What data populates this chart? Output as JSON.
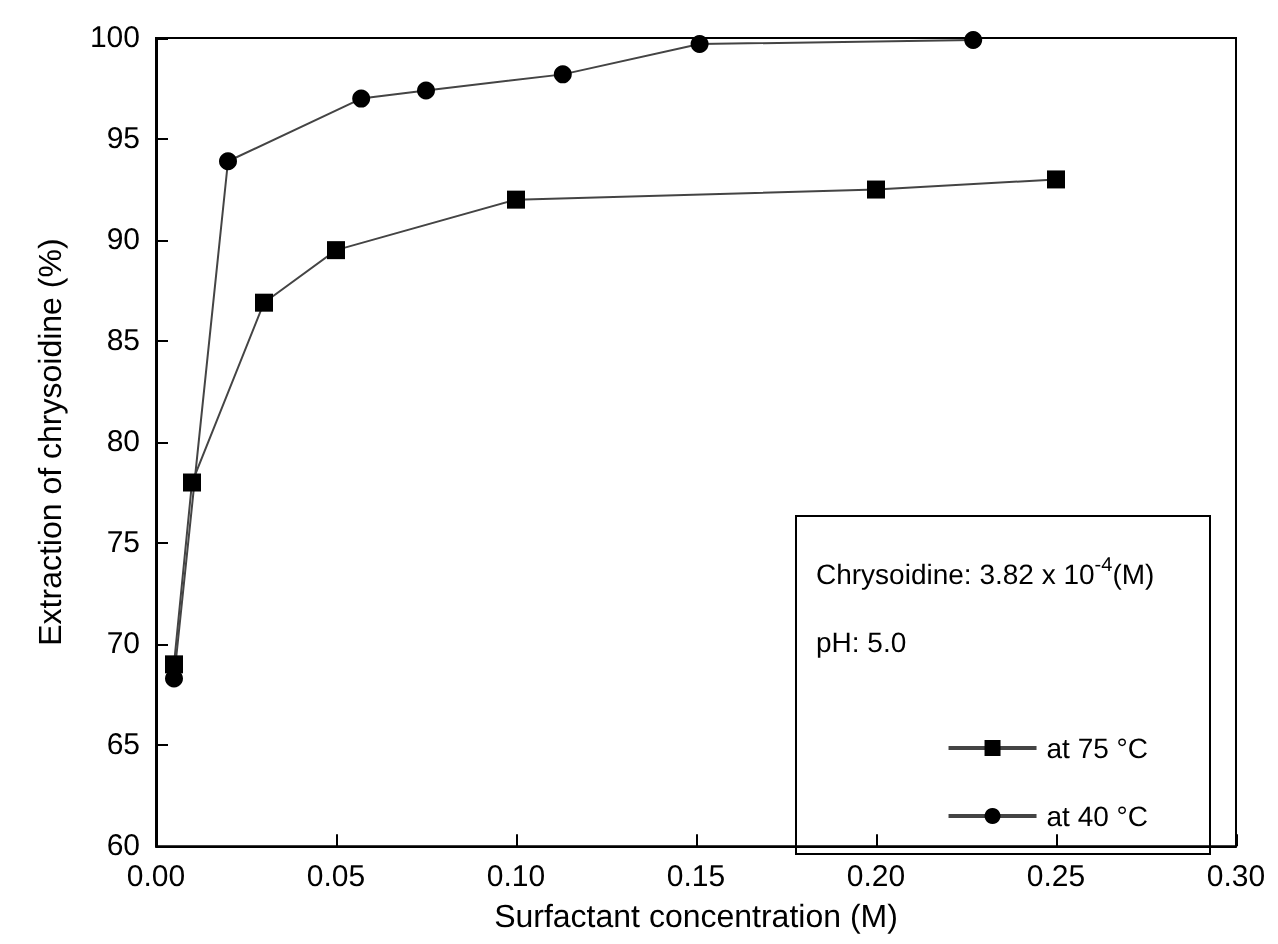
{
  "chart_data": {
    "type": "line",
    "xlabel": "Surfactant concentration (M)",
    "ylabel": "Extraction of chrysoidine (%)",
    "xlim": [
      0,
      0.3
    ],
    "xticks": [
      {
        "value": 0,
        "label": "0.00"
      },
      {
        "value": 0.05,
        "label": "0.05"
      },
      {
        "value": 0.1,
        "label": "0.10"
      },
      {
        "value": 0.15,
        "label": "0.15"
      },
      {
        "value": 0.2,
        "label": "0.20"
      },
      {
        "value": 0.25,
        "label": "0.25"
      },
      {
        "value": 0.3,
        "label": "0.30"
      }
    ],
    "ylim": [
      60,
      100
    ],
    "yticks": [
      60,
      65,
      70,
      75,
      80,
      85,
      90,
      95,
      100
    ],
    "grid": false,
    "legend": "bottom right",
    "line_style": "solid",
    "annotations": [
      "Chrysoidine: 3.82 x 10$^{-4}$(M)",
      "pH: 5.0"
    ],
    "series": [
      {
        "name": "at 75 °C",
        "color": "#000000",
        "marker": "square",
        "x": [
          0.005,
          0.01,
          0.03,
          0.05,
          0.1,
          0.2,
          0.25
        ],
        "values": [
          69,
          78,
          86.9,
          89.5,
          92,
          92.5,
          93
        ]
      },
      {
        "name": "at 40 °C",
        "color": "#000000",
        "marker": "circle",
        "x": [
          0.005,
          0.02,
          0.057,
          0.075,
          0.113,
          0.151,
          0.227
        ],
        "values": [
          68.3,
          93.9,
          97,
          97.4,
          98.2,
          99.7,
          99.9
        ]
      }
    ]
  }
}
